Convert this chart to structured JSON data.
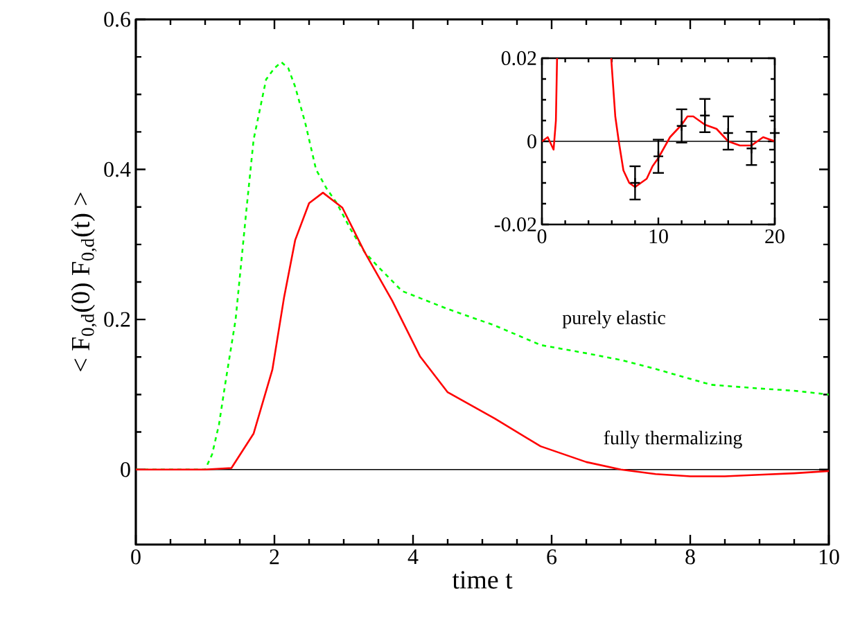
{
  "chart_data": [
    {
      "type": "line",
      "xlabel": "time t",
      "ylabel": "< F$_{0,d}$(0) F$_{0,d}$(t) >",
      "xlim": [
        0,
        10
      ],
      "ylim": [
        -0.1,
        0.6
      ],
      "xticks": [
        0,
        2,
        4,
        6,
        8,
        10
      ],
      "yticks": [
        0,
        0.2,
        0.4,
        0.6
      ],
      "ref_lines": [
        {
          "axis": "y",
          "value": 0,
          "color": "#000000"
        }
      ],
      "series": [
        {
          "name": "purely elastic",
          "color": "#00ff00",
          "line_style": "dashed",
          "x": [
            0,
            0.5,
            1.0,
            1.1,
            1.2,
            1.3,
            1.44,
            1.6,
            1.7,
            1.88,
            2.0,
            2.1,
            2.2,
            2.3,
            2.45,
            2.6,
            2.75,
            2.9,
            3.1,
            3.3,
            3.5,
            3.84,
            4.5,
            5.18,
            5.84,
            6.5,
            7.0,
            7.5,
            8.3,
            9.0,
            9.5,
            10
          ],
          "values": [
            0,
            0,
            0,
            0.02,
            0.06,
            0.12,
            0.2,
            0.35,
            0.44,
            0.52,
            0.535,
            0.543,
            0.535,
            0.51,
            0.46,
            0.4,
            0.375,
            0.355,
            0.32,
            0.29,
            0.27,
            0.238,
            0.214,
            0.192,
            0.166,
            0.155,
            0.146,
            0.134,
            0.113,
            0.108,
            0.105,
            0.1
          ]
        },
        {
          "name": "fully thermalizing",
          "color": "#ff0000",
          "line_style": "solid",
          "x": [
            0,
            0.5,
            1.0,
            1.38,
            1.7,
            1.97,
            2.14,
            2.3,
            2.5,
            2.7,
            2.98,
            3.3,
            3.7,
            4.1,
            4.5,
            5.18,
            5.84,
            6.5,
            7.0,
            7.5,
            8.0,
            8.5,
            9.0,
            9.5,
            10
          ],
          "values": [
            0,
            0,
            0,
            0.002,
            0.048,
            0.133,
            0.23,
            0.306,
            0.355,
            0.369,
            0.349,
            0.29,
            0.225,
            0.151,
            0.103,
            0.068,
            0.031,
            0.01,
            0.0,
            -0.006,
            -0.009,
            -0.009,
            -0.007,
            -0.005,
            -0.002
          ]
        }
      ]
    },
    {
      "type": "line",
      "xlim": [
        0,
        20
      ],
      "ylim": [
        -0.02,
        0.02
      ],
      "xticks": [
        0,
        10,
        20
      ],
      "yticks": [
        -0.02,
        0,
        0.02
      ],
      "ref_lines": [
        {
          "axis": "y",
          "value": 0,
          "color": "#000000"
        }
      ],
      "series": [
        {
          "color": "#ff0000",
          "line_style": "solid",
          "x": [
            0,
            0.5,
            1.0,
            1.2,
            1.3,
            3.5,
            5.95,
            6.3,
            6.6,
            7.0,
            7.5,
            8,
            8.5,
            9,
            9.5,
            10,
            11,
            12,
            12.5,
            13,
            14,
            15,
            16,
            17,
            18,
            19,
            20
          ],
          "values": [
            0,
            0.001,
            -0.002,
            0.005,
            0.02,
            null,
            0.02,
            0.006,
            0,
            -0.007,
            -0.01,
            -0.011,
            -0.01,
            -0.009,
            -0.006,
            -0.004,
            0.001,
            0.004,
            0.006,
            0.006,
            0.004,
            0.003,
            0.0,
            -0.001,
            -0.001,
            0.001,
            0
          ]
        },
        {
          "type": "scatter",
          "marker": "cross",
          "color": "#000000",
          "x": [
            8,
            10,
            12,
            14,
            16,
            18,
            20
          ],
          "values": [
            -0.01,
            -0.0036,
            0.0037,
            0.0062,
            0.002,
            -0.0017,
            0.002
          ],
          "errors": [
            0.004,
            0.004,
            0.004,
            0.004,
            0.004,
            0.004,
            0.004
          ]
        }
      ]
    }
  ]
}
